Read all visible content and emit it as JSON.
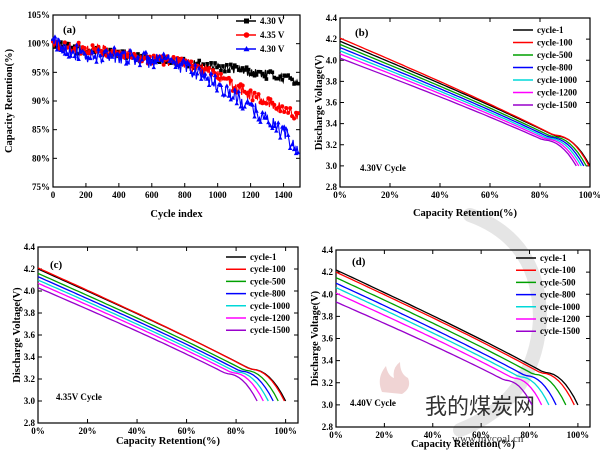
{
  "watermark": {
    "text": "我的煤炭网",
    "url": "www.mycoal.cn",
    "colors": [
      "#c8c8c8",
      "#e6b8b8"
    ]
  },
  "chart_data": [
    {
      "panel": "(a)",
      "type": "line",
      "xlabel": "Cycle index",
      "ylabel": "Capacity Retention(%)",
      "xlim": [
        0,
        1500
      ],
      "ylim": [
        75,
        105
      ],
      "xticks": [
        0,
        200,
        400,
        600,
        800,
        1000,
        1200,
        1400
      ],
      "yticks": [
        75,
        80,
        85,
        90,
        95,
        100,
        105
      ],
      "ytick_suffix": "%",
      "legend_position": "top-right",
      "series": [
        {
          "name": "4.30 V",
          "color": "#000000",
          "marker": "square",
          "x": [
            0,
            100,
            200,
            300,
            400,
            500,
            600,
            700,
            800,
            900,
            1000,
            1100,
            1200,
            1300,
            1400,
            1490
          ],
          "y": [
            100,
            99.2,
            98.8,
            98.5,
            98.1,
            97.6,
            97.2,
            96.9,
            96.6,
            96.3,
            96.0,
            95.6,
            95.1,
            94.6,
            94.0,
            93.6
          ]
        },
        {
          "name": "4.35 V",
          "color": "#ff0000",
          "marker": "circle",
          "x": [
            0,
            100,
            200,
            300,
            400,
            500,
            600,
            700,
            800,
            900,
            1000,
            1100,
            1200,
            1300,
            1400,
            1490
          ],
          "y": [
            99.8,
            99.4,
            99.0,
            98.8,
            98.4,
            97.9,
            97.4,
            97.0,
            96.5,
            95.6,
            94.4,
            92.6,
            91.0,
            89.8,
            88.6,
            87.4
          ]
        },
        {
          "name": "4.30 V",
          "color": "#0000ff",
          "marker": "triangle",
          "x": [
            0,
            100,
            200,
            300,
            400,
            500,
            600,
            700,
            800,
            900,
            1000,
            1100,
            1200,
            1300,
            1400,
            1490
          ],
          "y": [
            100.2,
            99.0,
            97.6,
            97.9,
            98.0,
            97.5,
            97.0,
            96.8,
            96.0,
            94.8,
            92.8,
            90.8,
            88.8,
            86.8,
            84.4,
            81.0
          ]
        }
      ]
    },
    {
      "panel": "(b)",
      "type": "line",
      "xlabel": "Capacity Retention(%)",
      "ylabel": "Discharge Voltage(V)",
      "annotation": "4.30V Cycle",
      "xlim": [
        0,
        100
      ],
      "ylim": [
        2.8,
        4.4
      ],
      "xticks": [
        0,
        20,
        40,
        60,
        80,
        100
      ],
      "xtick_suffix": "%",
      "yticks": [
        2.8,
        3.0,
        3.2,
        3.4,
        3.6,
        3.8,
        4.0,
        4.2,
        4.4
      ],
      "legend_position": "top-right",
      "series": [
        {
          "name": "cycle-1",
          "color": "#000000",
          "x_end": 100,
          "v0": 4.18
        },
        {
          "name": "cycle-100",
          "color": "#ff0000",
          "x_end": 99.6,
          "v0": 4.21
        },
        {
          "name": "cycle-500",
          "color": "#00a000",
          "x_end": 98.5,
          "v0": 4.15
        },
        {
          "name": "cycle-800",
          "color": "#0000ff",
          "x_end": 97.5,
          "v0": 4.12
        },
        {
          "name": "cycle-1000",
          "color": "#00d8d8",
          "x_end": 96.5,
          "v0": 4.09
        },
        {
          "name": "cycle-1200",
          "color": "#ff00ff",
          "x_end": 95.5,
          "v0": 4.06
        },
        {
          "name": "cycle-1500",
          "color": "#9900cc",
          "x_end": 94.5,
          "v0": 4.02
        }
      ]
    },
    {
      "panel": "(c)",
      "type": "line",
      "xlabel": "Capacity Retention(%)",
      "ylabel": "Discharge Voltage(V)",
      "annotation": "4.35V Cycle",
      "xlim": [
        0,
        105
      ],
      "ylim": [
        2.8,
        4.4
      ],
      "xticks": [
        0,
        20,
        40,
        60,
        80,
        100
      ],
      "xtick_suffix": "%",
      "yticks": [
        2.8,
        3.0,
        3.2,
        3.4,
        3.6,
        3.8,
        4.0,
        4.2,
        4.4
      ],
      "legend_position": "top-right",
      "series": [
        {
          "name": "cycle-1",
          "color": "#000000",
          "x_end": 100,
          "v0": 4.2
        },
        {
          "name": "cycle-100",
          "color": "#ff0000",
          "x_end": 99.5,
          "v0": 4.21
        },
        {
          "name": "cycle-500",
          "color": "#00a000",
          "x_end": 97,
          "v0": 4.16
        },
        {
          "name": "cycle-800",
          "color": "#0000ff",
          "x_end": 95,
          "v0": 4.13
        },
        {
          "name": "cycle-1000",
          "color": "#00d8d8",
          "x_end": 93,
          "v0": 4.1
        },
        {
          "name": "cycle-1200",
          "color": "#ff00ff",
          "x_end": 91,
          "v0": 4.07
        },
        {
          "name": "cycle-1500",
          "color": "#9900cc",
          "x_end": 88.5,
          "v0": 4.03
        }
      ]
    },
    {
      "panel": "(d)",
      "type": "line",
      "xlabel": "Capacity Retention(%)",
      "ylabel": "Discharge Voltage(V)",
      "annotation": "4.40V Cycle",
      "xlim": [
        0,
        105
      ],
      "ylim": [
        2.8,
        4.4
      ],
      "xticks": [
        0,
        20,
        40,
        60,
        80,
        100
      ],
      "xtick_suffix": "%",
      "yticks": [
        2.8,
        3.0,
        3.2,
        3.4,
        3.6,
        3.8,
        4.0,
        4.2,
        4.4
      ],
      "legend_position": "top-right",
      "series": [
        {
          "name": "cycle-1",
          "color": "#000000",
          "x_end": 100,
          "v0": 4.22
        },
        {
          "name": "cycle-100",
          "color": "#ff0000",
          "x_end": 98.5,
          "v0": 4.2
        },
        {
          "name": "cycle-500",
          "color": "#00a000",
          "x_end": 95,
          "v0": 4.15
        },
        {
          "name": "cycle-800",
          "color": "#0000ff",
          "x_end": 91,
          "v0": 4.1
        },
        {
          "name": "cycle-1000",
          "color": "#00d8d8",
          "x_end": 88,
          "v0": 4.06
        },
        {
          "name": "cycle-1200",
          "color": "#ff00ff",
          "x_end": 85,
          "v0": 4.01
        },
        {
          "name": "cycle-1500",
          "color": "#9900cc",
          "x_end": 81,
          "v0": 3.93
        }
      ]
    }
  ]
}
